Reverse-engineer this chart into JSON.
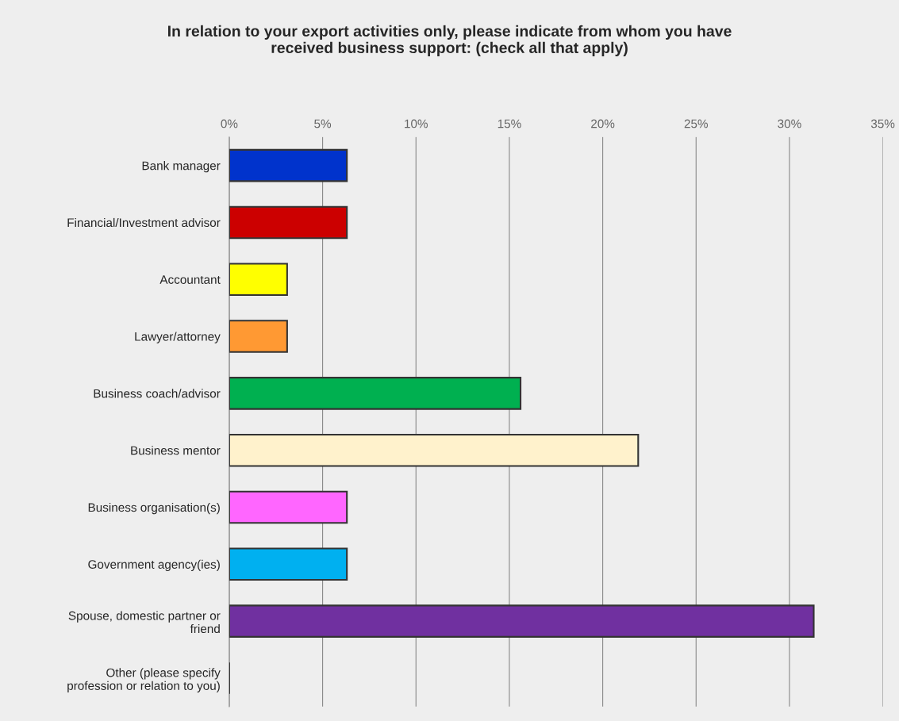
{
  "chart_data": {
    "type": "bar",
    "orientation": "horizontal",
    "title": "In relation to your export activities only, please indicate from whom you have\nreceived business support: (check all that apply)",
    "categories": [
      "Bank manager",
      "Financial/Investment advisor",
      "Accountant",
      "Lawyer/attorney",
      "Business coach/advisor",
      "Business mentor",
      "Business organisation(s)",
      "Government agency(ies)",
      "Spouse, domestic partner or\nfriend",
      "Other (please specify\nprofession or relation to you)"
    ],
    "values": [
      6.3,
      6.3,
      3.1,
      3.1,
      15.6,
      21.9,
      6.3,
      6.3,
      31.3,
      0
    ],
    "colors": [
      "#0033cc",
      "#cc0000",
      "#ffff00",
      "#ff9933",
      "#00b050",
      "#fff2cc",
      "#ff66ff",
      "#00b0f0",
      "#7030a0",
      "#333333"
    ],
    "xlim": [
      0,
      35
    ],
    "xticks": [
      {
        "value": 0,
        "label": "0%"
      },
      {
        "value": 5,
        "label": "5%"
      },
      {
        "value": 10,
        "label": "10%"
      },
      {
        "value": 15,
        "label": "15%"
      },
      {
        "value": 20,
        "label": "20%"
      },
      {
        "value": 25,
        "label": "25%"
      },
      {
        "value": 30,
        "label": "30%"
      },
      {
        "value": 35,
        "label": "35%"
      }
    ],
    "grid": "x",
    "legend": false
  }
}
